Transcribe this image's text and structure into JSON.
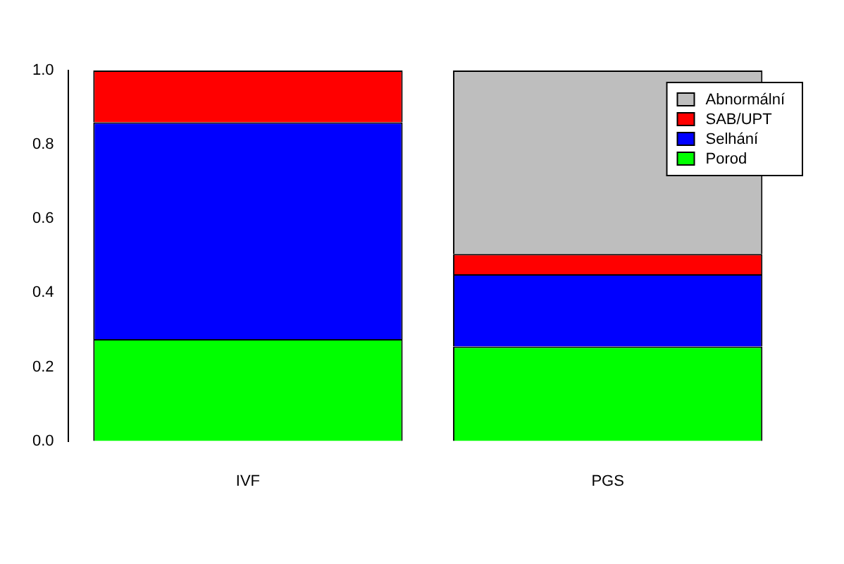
{
  "chart_data": {
    "type": "bar",
    "stacked": true,
    "categories": [
      "IVF",
      "PGS"
    ],
    "series": [
      {
        "name": "Porod",
        "color": "#00ff00",
        "values": [
          0.275,
          0.255
        ]
      },
      {
        "name": "Selhání",
        "color": "#0000ff",
        "values": [
          0.585,
          0.195
        ]
      },
      {
        "name": "SAB/UPT",
        "color": "#ff0000",
        "values": [
          0.14,
          0.055
        ]
      },
      {
        "name": "Abnormální",
        "color": "#bebebe",
        "values": [
          0,
          0.495
        ]
      }
    ],
    "ylim": [
      0,
      1
    ],
    "yticks": [
      {
        "value": 0,
        "label": "0.0"
      },
      {
        "value": 0.2,
        "label": "0.2"
      },
      {
        "value": 0.4,
        "label": "0.4"
      },
      {
        "value": 0.6,
        "label": "0.6"
      },
      {
        "value": 0.8,
        "label": "0.8"
      },
      {
        "value": 1,
        "label": "1.0"
      }
    ],
    "grid": false,
    "legend": "top right"
  }
}
